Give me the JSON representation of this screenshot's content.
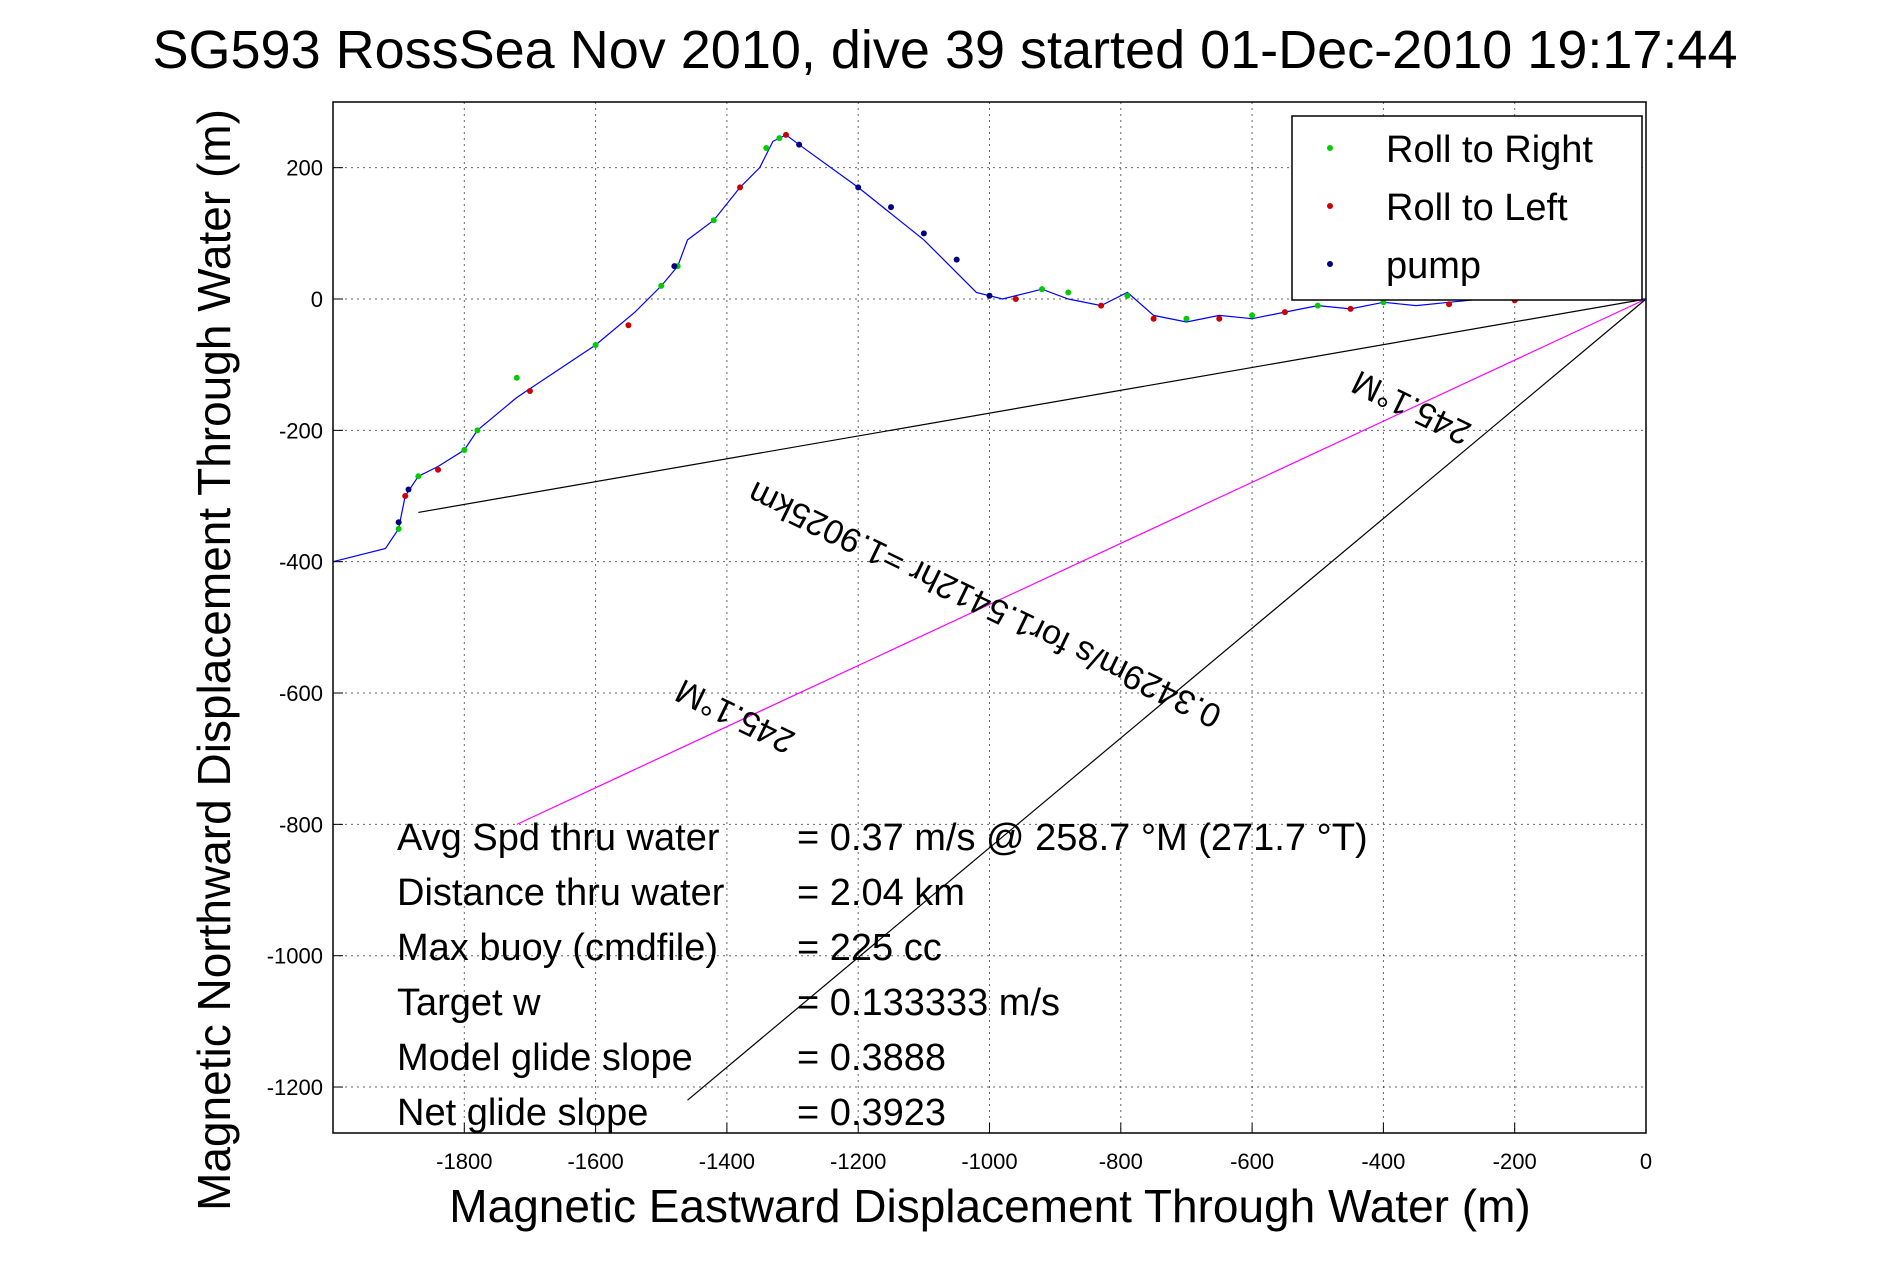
{
  "chart_data": {
    "type": "line",
    "title": "SG593 RossSea Nov 2010, dive 39 started 01-Dec-2010 19:17:44",
    "xlabel": "Magnetic Eastward Displacement Through Water (m)",
    "ylabel": "Magnetic Northward Displacement Through Water (m)",
    "xlim": [
      -2000,
      0
    ],
    "ylim": [
      -1270,
      300
    ],
    "grid": true,
    "legend_placement": "top-right",
    "x_ticks": [
      -1800,
      -1600,
      -1400,
      -1200,
      -1000,
      -800,
      -600,
      -400,
      -200,
      0
    ],
    "y_ticks": [
      200,
      0,
      -200,
      -400,
      -600,
      -800,
      -1000,
      -1200
    ],
    "track": {
      "name": "track",
      "color": "#0000ff",
      "x": [
        -2000,
        -1920,
        -1900,
        -1890,
        -1870,
        -1840,
        -1800,
        -1780,
        -1720,
        -1660,
        -1600,
        -1540,
        -1500,
        -1475,
        -1460,
        -1420,
        -1380,
        -1350,
        -1330,
        -1310,
        -1290,
        -1200,
        -1100,
        -1020,
        -980,
        -920,
        -880,
        -830,
        -790,
        -750,
        -700,
        -650,
        -600,
        -550,
        -500,
        -450,
        -400,
        -350,
        -300,
        -250,
        -200,
        -150,
        -100,
        -50,
        0
      ],
      "y": [
        -400,
        -380,
        -350,
        -300,
        -270,
        -255,
        -230,
        -200,
        -150,
        -110,
        -70,
        -20,
        20,
        50,
        90,
        120,
        170,
        200,
        240,
        250,
        235,
        170,
        90,
        10,
        0,
        15,
        0,
        -10,
        10,
        -25,
        -35,
        -25,
        -30,
        -20,
        -10,
        -15,
        -5,
        -10,
        -5,
        0,
        0,
        0,
        0,
        0,
        0
      ]
    },
    "series": [
      {
        "name": "Roll to Right",
        "color": "#00cc00",
        "marker": "dot",
        "x": [
          -1900,
          -1870,
          -1800,
          -1780,
          -1720,
          -1600,
          -1500,
          -1475,
          -1420,
          -1340,
          -1320,
          -920,
          -880,
          -790,
          -700,
          -600,
          -500,
          -400
        ],
        "y": [
          -350,
          -270,
          -230,
          -200,
          -120,
          -70,
          20,
          50,
          120,
          230,
          245,
          15,
          10,
          5,
          -30,
          -25,
          -10,
          -5
        ]
      },
      {
        "name": "Roll to Left",
        "color": "#cc0000",
        "marker": "dot",
        "x": [
          -1890,
          -1840,
          -1700,
          -1550,
          -1380,
          -1310,
          -960,
          -830,
          -750,
          -650,
          -550,
          -450,
          -300,
          -200
        ],
        "y": [
          -300,
          -260,
          -140,
          -40,
          170,
          250,
          0,
          -10,
          -30,
          -30,
          -20,
          -15,
          -8,
          -2
        ]
      },
      {
        "name": "pump",
        "color": "#000080",
        "marker": "dot",
        "x": [
          -1900,
          -1885,
          -1480,
          -1290,
          -1200,
          -1150,
          -1100,
          -1050,
          -1000
        ],
        "y": [
          -340,
          -290,
          50,
          235,
          170,
          140,
          100,
          60,
          5
        ]
      }
    ],
    "lines": [
      {
        "name": "",
        "color": "#000000",
        "x": [
          -1870,
          0
        ],
        "y": [
          -325,
          0
        ]
      },
      {
        "name": "",
        "color": "#ff00ff",
        "x": [
          -1720,
          0
        ],
        "y": [
          -800,
          0
        ]
      },
      {
        "name": "",
        "color": "#000000",
        "x": [
          -1460,
          0
        ],
        "y": [
          -1220,
          0
        ]
      }
    ],
    "annotations": [
      {
        "text": "245.1°M",
        "x": -1380,
        "y": -620,
        "angle": 205.9
      },
      {
        "text": "0.3429m/s for1.5412hr =1.9025km",
        "x": -1000,
        "y": -450,
        "angle": 205.9
      },
      {
        "text": "245.1°M",
        "x": -350,
        "y": -150,
        "angle": 205.9
      }
    ],
    "stats": [
      {
        "label": "Avg Spd thru water",
        "value": "=  0.37 m/s @ 258.7 °M (271.7 °T)"
      },
      {
        "label": "Distance thru water",
        "value": "=  2.04 km"
      },
      {
        "label": "Max buoy (cmdfile)",
        "value": "= 225 cc"
      },
      {
        "label": "Target w",
        "value": "= 0.133333 m/s"
      },
      {
        "label": "Model glide slope",
        "value": "= 0.3888"
      },
      {
        "label": "Net glide slope",
        "value": "= 0.3923"
      }
    ]
  }
}
